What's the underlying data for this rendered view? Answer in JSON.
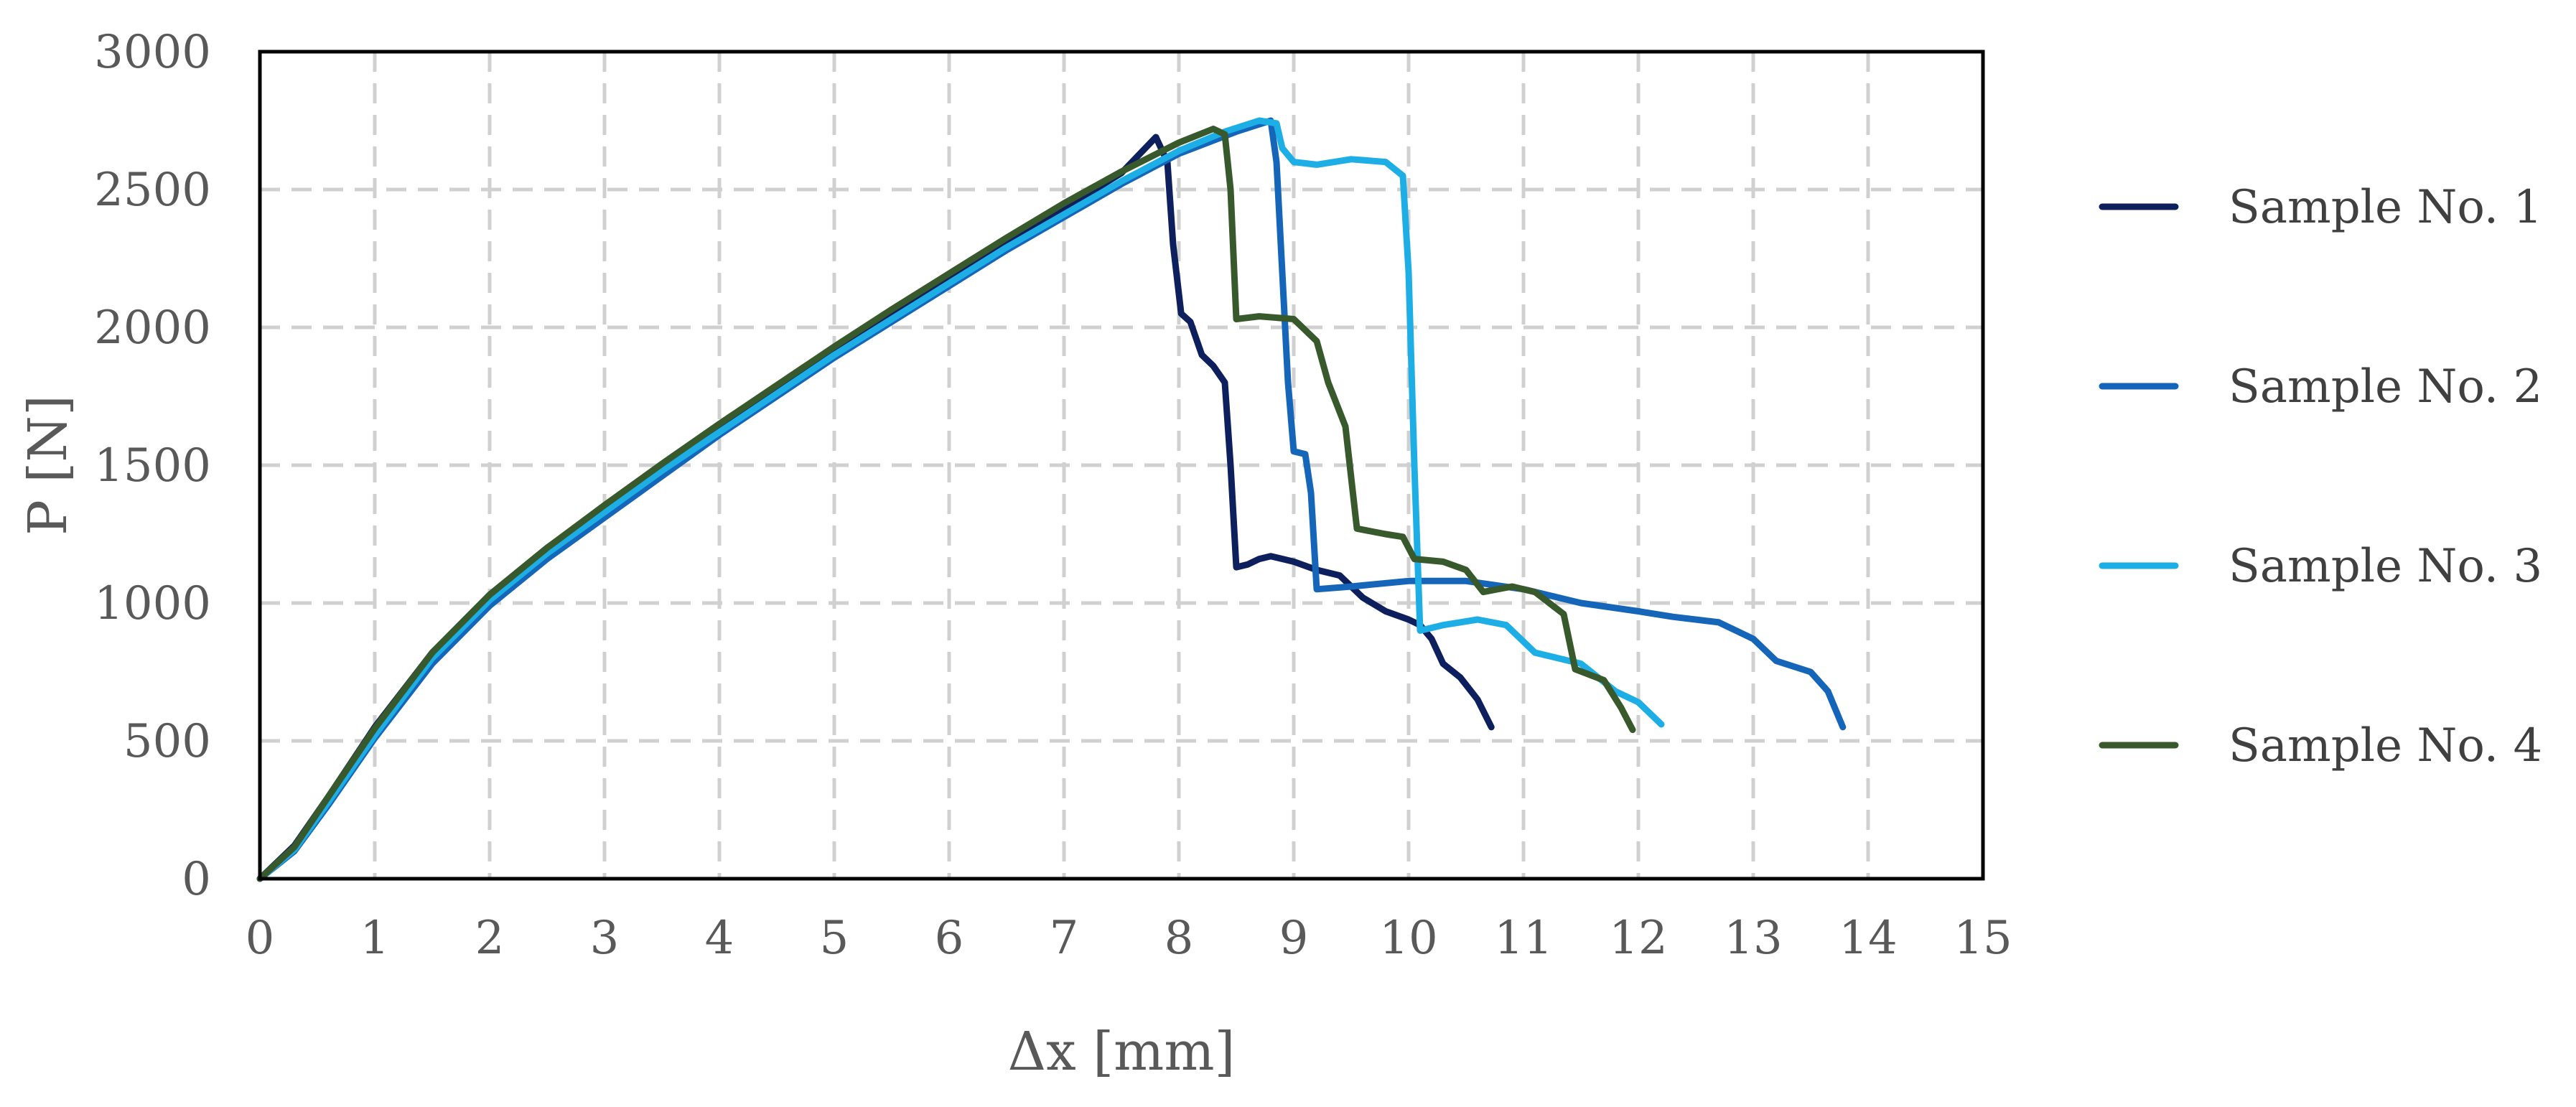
{
  "chart_data": {
    "type": "line",
    "title": "",
    "xlabel": "Δx [mm]",
    "ylabel": "P [N]",
    "xlim": [
      0,
      15
    ],
    "ylim": [
      0,
      3000
    ],
    "x_ticks": [
      0,
      1,
      2,
      3,
      4,
      5,
      6,
      7,
      8,
      9,
      10,
      11,
      12,
      13,
      14,
      15
    ],
    "y_ticks": [
      0,
      500,
      1000,
      1500,
      2000,
      2500,
      3000
    ],
    "grid": true,
    "legend_position": "right",
    "series": [
      {
        "name": "Sample No. 1",
        "color": "#0d1f5c",
        "points": [
          [
            0,
            0
          ],
          [
            0.3,
            120
          ],
          [
            0.6,
            300
          ],
          [
            1,
            550
          ],
          [
            1.5,
            820
          ],
          [
            2,
            1030
          ],
          [
            2.5,
            1200
          ],
          [
            3,
            1350
          ],
          [
            3.5,
            1500
          ],
          [
            4,
            1640
          ],
          [
            4.5,
            1780
          ],
          [
            5,
            1920
          ],
          [
            5.5,
            2050
          ],
          [
            6,
            2180
          ],
          [
            6.5,
            2310
          ],
          [
            7,
            2430
          ],
          [
            7.5,
            2560
          ],
          [
            7.8,
            2690
          ],
          [
            7.9,
            2600
          ],
          [
            7.95,
            2300
          ],
          [
            8.02,
            2050
          ],
          [
            8.1,
            2020
          ],
          [
            8.2,
            1900
          ],
          [
            8.3,
            1860
          ],
          [
            8.4,
            1800
          ],
          [
            8.45,
            1500
          ],
          [
            8.5,
            1130
          ],
          [
            8.6,
            1140
          ],
          [
            8.7,
            1160
          ],
          [
            8.8,
            1170
          ],
          [
            9.0,
            1150
          ],
          [
            9.2,
            1120
          ],
          [
            9.4,
            1100
          ],
          [
            9.6,
            1020
          ],
          [
            9.8,
            970
          ],
          [
            10.0,
            940
          ],
          [
            10.1,
            920
          ],
          [
            10.2,
            870
          ],
          [
            10.3,
            780
          ],
          [
            10.45,
            730
          ],
          [
            10.6,
            650
          ],
          [
            10.72,
            550
          ]
        ]
      },
      {
        "name": "Sample No. 2",
        "color": "#1565b8",
        "points": [
          [
            0,
            0
          ],
          [
            0.3,
            100
          ],
          [
            0.6,
            270
          ],
          [
            1,
            510
          ],
          [
            1.5,
            780
          ],
          [
            2,
            990
          ],
          [
            2.5,
            1160
          ],
          [
            3,
            1310
          ],
          [
            3.5,
            1460
          ],
          [
            4,
            1610
          ],
          [
            4.5,
            1750
          ],
          [
            5,
            1890
          ],
          [
            5.5,
            2020
          ],
          [
            6,
            2150
          ],
          [
            6.5,
            2280
          ],
          [
            7,
            2400
          ],
          [
            7.5,
            2520
          ],
          [
            8,
            2630
          ],
          [
            8.5,
            2710
          ],
          [
            8.8,
            2750
          ],
          [
            8.85,
            2600
          ],
          [
            8.9,
            2200
          ],
          [
            8.95,
            1800
          ],
          [
            9.0,
            1550
          ],
          [
            9.1,
            1540
          ],
          [
            9.15,
            1400
          ],
          [
            9.2,
            1050
          ],
          [
            9.5,
            1060
          ],
          [
            10.0,
            1080
          ],
          [
            10.5,
            1080
          ],
          [
            11,
            1050
          ],
          [
            11.5,
            1000
          ],
          [
            12,
            970
          ],
          [
            12.3,
            950
          ],
          [
            12.7,
            930
          ],
          [
            13,
            870
          ],
          [
            13.2,
            790
          ],
          [
            13.5,
            750
          ],
          [
            13.65,
            680
          ],
          [
            13.78,
            550
          ]
        ]
      },
      {
        "name": "Sample No. 3",
        "color": "#1eaee6",
        "points": [
          [
            0,
            0
          ],
          [
            0.3,
            105
          ],
          [
            0.6,
            280
          ],
          [
            1,
            520
          ],
          [
            1.5,
            800
          ],
          [
            2,
            1010
          ],
          [
            2.5,
            1180
          ],
          [
            3,
            1330
          ],
          [
            3.5,
            1480
          ],
          [
            4,
            1620
          ],
          [
            4.5,
            1760
          ],
          [
            5,
            1900
          ],
          [
            5.5,
            2030
          ],
          [
            6,
            2160
          ],
          [
            6.5,
            2290
          ],
          [
            7,
            2410
          ],
          [
            7.5,
            2530
          ],
          [
            8,
            2640
          ],
          [
            8.4,
            2710
          ],
          [
            8.7,
            2750
          ],
          [
            8.85,
            2740
          ],
          [
            8.9,
            2650
          ],
          [
            9.0,
            2600
          ],
          [
            9.2,
            2590
          ],
          [
            9.5,
            2610
          ],
          [
            9.8,
            2600
          ],
          [
            9.95,
            2550
          ],
          [
            10.0,
            2200
          ],
          [
            10.05,
            1500
          ],
          [
            10.1,
            900
          ],
          [
            10.3,
            920
          ],
          [
            10.6,
            940
          ],
          [
            10.85,
            920
          ],
          [
            11.1,
            820
          ],
          [
            11.5,
            780
          ],
          [
            11.8,
            680
          ],
          [
            12.0,
            640
          ],
          [
            12.2,
            560
          ]
        ]
      },
      {
        "name": "Sample No. 4",
        "color": "#37592b",
        "points": [
          [
            0,
            0
          ],
          [
            0.3,
            115
          ],
          [
            0.6,
            300
          ],
          [
            1,
            545
          ],
          [
            1.5,
            820
          ],
          [
            2,
            1030
          ],
          [
            2.5,
            1200
          ],
          [
            3,
            1355
          ],
          [
            3.5,
            1505
          ],
          [
            4,
            1650
          ],
          [
            4.5,
            1790
          ],
          [
            5,
            1930
          ],
          [
            5.5,
            2065
          ],
          [
            6,
            2195
          ],
          [
            6.5,
            2325
          ],
          [
            7,
            2450
          ],
          [
            7.5,
            2565
          ],
          [
            8,
            2670
          ],
          [
            8.3,
            2720
          ],
          [
            8.4,
            2700
          ],
          [
            8.45,
            2500
          ],
          [
            8.5,
            2030
          ],
          [
            8.7,
            2040
          ],
          [
            9.0,
            2030
          ],
          [
            9.2,
            1950
          ],
          [
            9.3,
            1800
          ],
          [
            9.45,
            1640
          ],
          [
            9.55,
            1270
          ],
          [
            9.8,
            1250
          ],
          [
            9.95,
            1240
          ],
          [
            10.05,
            1160
          ],
          [
            10.3,
            1150
          ],
          [
            10.5,
            1120
          ],
          [
            10.65,
            1040
          ],
          [
            10.9,
            1060
          ],
          [
            11.1,
            1040
          ],
          [
            11.35,
            960
          ],
          [
            11.45,
            760
          ],
          [
            11.7,
            720
          ],
          [
            11.85,
            620
          ],
          [
            11.95,
            540
          ]
        ]
      }
    ]
  }
}
